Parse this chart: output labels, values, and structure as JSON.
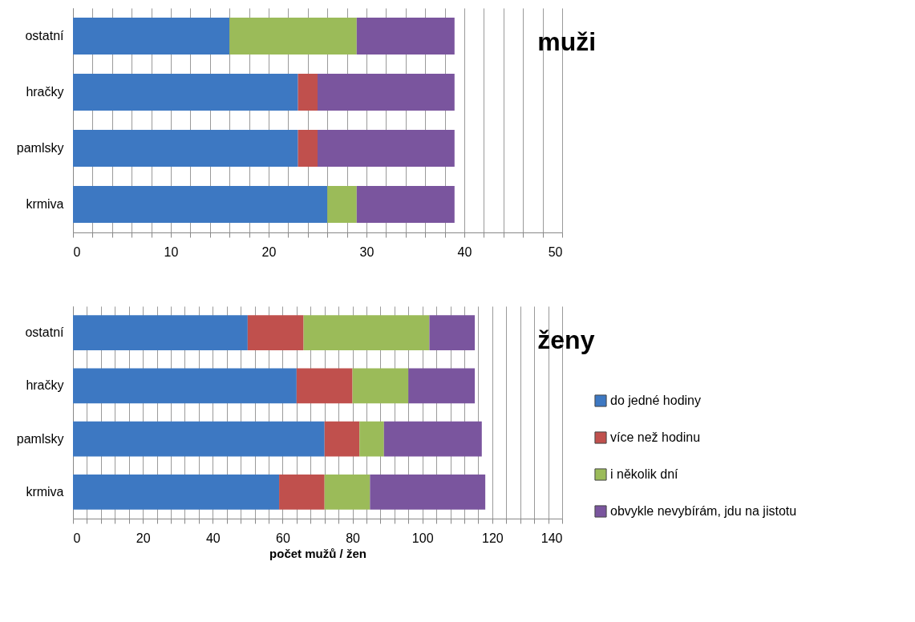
{
  "chart_data": [
    {
      "type": "bar",
      "orientation": "horizontal",
      "stacked": true,
      "title": "muži",
      "categories": [
        "ostatní",
        "hračky",
        "pamlsky",
        "krmiva"
      ],
      "series": [
        {
          "color": "#3d78c2",
          "values": [
            16,
            23,
            23,
            26
          ]
        },
        {
          "color": "#c0504d",
          "values": [
            0,
            2,
            2,
            0
          ]
        },
        {
          "color": "#9bbb59",
          "values": [
            13,
            0,
            0,
            3
          ]
        },
        {
          "color": "#7a559e",
          "values": [
            10,
            14,
            14,
            10
          ]
        }
      ],
      "xlim": [
        0,
        50
      ],
      "xticks": [
        0,
        {
          "value": 2,
          "label": null
        },
        {
          "value": 4,
          "label": null
        },
        {
          "value": 6,
          "label": null
        },
        {
          "value": 8,
          "label": null
        },
        10,
        {
          "value": 12,
          "label": null
        },
        {
          "value": 14,
          "label": null
        },
        {
          "value": 16,
          "label": null
        },
        {
          "value": 18,
          "label": null
        },
        20,
        {
          "value": 22,
          "label": null
        },
        {
          "value": 24,
          "label": null
        },
        {
          "value": 26,
          "label": null
        },
        {
          "value": 28,
          "label": null
        },
        30,
        {
          "value": 32,
          "label": null
        },
        {
          "value": 34,
          "label": null
        },
        {
          "value": 36,
          "label": null
        },
        {
          "value": 38,
          "label": null
        },
        40,
        {
          "value": 42,
          "label": null
        },
        {
          "value": 44,
          "label": null
        },
        {
          "value": 46,
          "label": null
        },
        {
          "value": 48,
          "label": null
        },
        50
      ],
      "grid": "x",
      "legend": false
    },
    {
      "type": "bar",
      "orientation": "horizontal",
      "stacked": true,
      "title": "ženy",
      "xlabel": "počet mužů / žen",
      "categories": [
        "ostatní",
        "hračky",
        "pamlsky",
        "krmiva"
      ],
      "series": [
        {
          "name": "do jedné hodiny",
          "color": "#3d78c2",
          "values": [
            50,
            64,
            72,
            59
          ]
        },
        {
          "name": "více než hodinu",
          "color": "#c0504d",
          "values": [
            16,
            16,
            10,
            13
          ]
        },
        {
          "name": "i několik dní",
          "color": "#9bbb59",
          "values": [
            36,
            16,
            7,
            13
          ]
        },
        {
          "name": "obvykle nevybírám, jdu na jistotu",
          "color": "#7a559e",
          "values": [
            13,
            19,
            28,
            33
          ]
        }
      ],
      "xlim": [
        0,
        140
      ],
      "xticks": [
        0,
        {
          "value": 4,
          "label": null
        },
        {
          "value": 8,
          "label": null
        },
        {
          "value": 12,
          "label": null
        },
        {
          "value": 16,
          "label": null
        },
        20,
        {
          "value": 24,
          "label": null
        },
        {
          "value": 28,
          "label": null
        },
        {
          "value": 32,
          "label": null
        },
        {
          "value": 36,
          "label": null
        },
        40,
        {
          "value": 44,
          "label": null
        },
        {
          "value": 48,
          "label": null
        },
        {
          "value": 52,
          "label": null
        },
        {
          "value": 56,
          "label": null
        },
        60,
        {
          "value": 64,
          "label": null
        },
        {
          "value": 68,
          "label": null
        },
        {
          "value": 72,
          "label": null
        },
        {
          "value": 76,
          "label": null
        },
        80,
        {
          "value": 84,
          "label": null
        },
        {
          "value": 88,
          "label": null
        },
        {
          "value": 92,
          "label": null
        },
        {
          "value": 96,
          "label": null
        },
        100,
        {
          "value": 104,
          "label": null
        },
        {
          "value": 108,
          "label": null
        },
        {
          "value": 112,
          "label": null
        },
        {
          "value": 116,
          "label": null
        },
        120,
        {
          "value": 124,
          "label": null
        },
        {
          "value": 128,
          "label": null
        },
        {
          "value": 132,
          "label": null
        },
        {
          "value": 136,
          "label": null
        },
        140
      ],
      "grid": "x",
      "legend": "right"
    }
  ]
}
